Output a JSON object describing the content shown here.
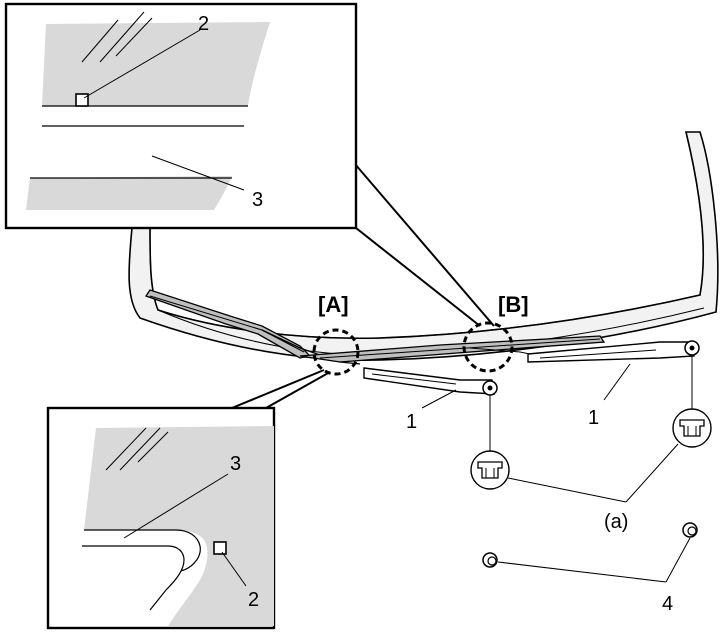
{
  "callouts": {
    "top_inset_clip": "2",
    "top_inset_edge": "3",
    "bottom_inset_edge": "3",
    "bottom_inset_clip": "2",
    "view_a": "[A]",
    "view_b": "[B]",
    "arm_left": "1",
    "arm_right": "1",
    "nut_note": "(a)",
    "caps": "4"
  },
  "colors": {
    "line": "#000000",
    "glass": "#d9d9d9",
    "body_panel": "#f2f2f2",
    "background": "#ffffff"
  }
}
